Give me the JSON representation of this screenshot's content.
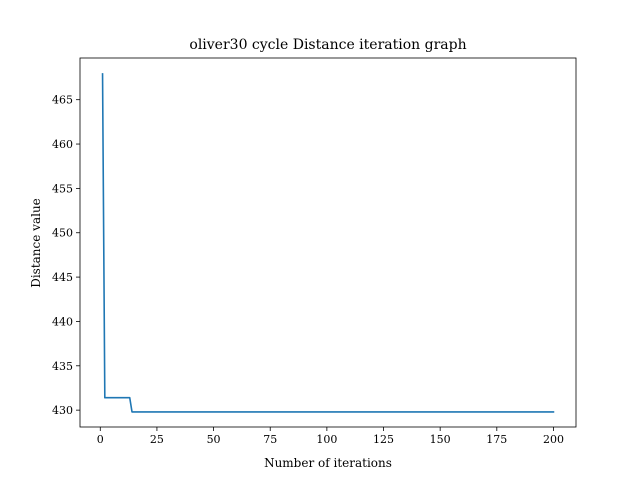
{
  "chart_data": {
    "type": "line",
    "title": "oliver30 cycle Distance iteration graph",
    "xlabel": "Number of iterations",
    "ylabel": "Distance value",
    "xlim": [
      -8.95,
      209.95
    ],
    "ylim": [
      428.1,
      469.7
    ],
    "xticks": [
      0,
      25,
      50,
      75,
      100,
      125,
      150,
      175,
      200
    ],
    "xtick_labels": [
      "0",
      "25",
      "50",
      "75",
      "100",
      "125",
      "150",
      "175",
      "200"
    ],
    "yticks": [
      430,
      435,
      440,
      445,
      450,
      455,
      460,
      465
    ],
    "ytick_labels": [
      "430",
      "435",
      "440",
      "445",
      "450",
      "455",
      "460",
      "465"
    ],
    "grid": false,
    "series": [
      {
        "name": "Distance",
        "color": "#1f77b4",
        "x": [
          1,
          2,
          3,
          4,
          5,
          6,
          7,
          8,
          9,
          10,
          11,
          12,
          13,
          14,
          15,
          200
        ],
        "y": [
          467.9,
          431.4,
          431.4,
          431.4,
          431.4,
          431.4,
          431.4,
          431.4,
          431.4,
          431.4,
          431.4,
          431.4,
          431.4,
          429.8,
          429.8,
          429.8
        ]
      }
    ]
  }
}
